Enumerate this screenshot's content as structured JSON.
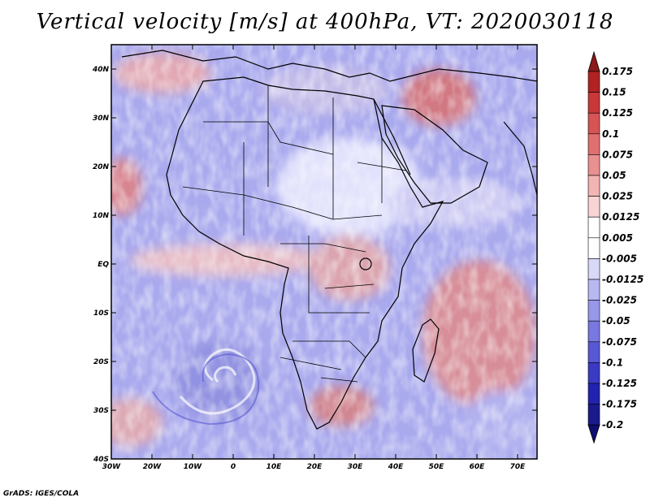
{
  "title": "Vertical velocity [m/s] at 400hPa, VT: 2020030118",
  "footer": "GrADS: IGES/COLA",
  "map": {
    "lon_ticks": [
      "30W",
      "20W",
      "10W",
      "0",
      "10E",
      "20E",
      "30E",
      "40E",
      "50E",
      "60E",
      "70E"
    ],
    "lat_ticks": [
      "40N",
      "30N",
      "20N",
      "10N",
      "EQ",
      "10S",
      "20S",
      "30S",
      "40S"
    ],
    "lon_range": [
      -30,
      75
    ],
    "lat_range": [
      -40,
      45
    ]
  },
  "colorbar": {
    "labels": [
      "0.175",
      "0.15",
      "0.125",
      "0.1",
      "0.075",
      "0.05",
      "0.025",
      "0.0125",
      "0.005",
      "-0.005",
      "-0.0125",
      "-0.025",
      "-0.05",
      "-0.075",
      "-0.1",
      "-0.125",
      "-0.175",
      "-0.2"
    ],
    "colors": [
      "#8b1a1a",
      "#b22222",
      "#c83838",
      "#d65454",
      "#e07070",
      "#ea9090",
      "#f2b4b4",
      "#f8d4d4",
      "#ffffff",
      "#ffffff",
      "#d8d8f8",
      "#b8b8f2",
      "#9898ea",
      "#7878e0",
      "#5858d4",
      "#3a3ac4",
      "#2222b0",
      "#1a1a8c",
      "#0e0e70"
    ]
  }
}
